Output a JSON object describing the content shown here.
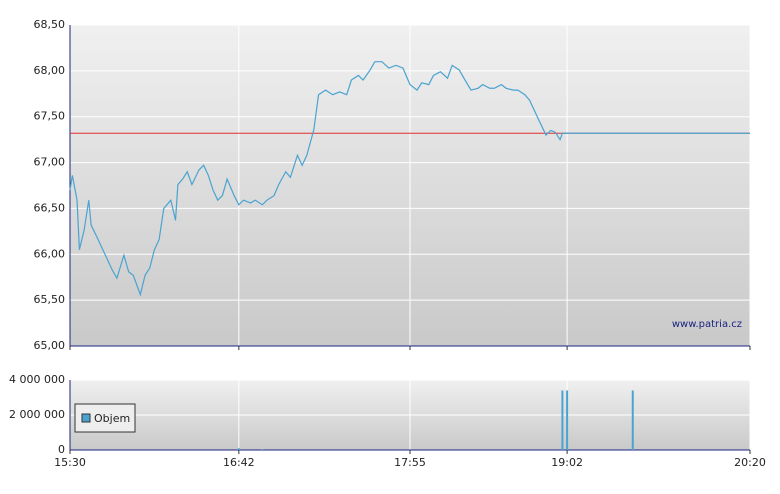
{
  "chart_data": [
    {
      "type": "line",
      "watermark": "www.patria.cz",
      "xlim": [
        "15:30",
        "20:20"
      ],
      "ylim": [
        65,
        68.5
      ],
      "yticks": [
        {
          "value": 65,
          "label": "65,00"
        },
        {
          "value": 65.5,
          "label": "65,50"
        },
        {
          "value": 66,
          "label": "66,00"
        },
        {
          "value": 66.5,
          "label": "66,50"
        },
        {
          "value": 67,
          "label": "67,00"
        },
        {
          "value": 67.5,
          "label": "67,50"
        },
        {
          "value": 68,
          "label": "68,00"
        },
        {
          "value": 68.5,
          "label": "68,50"
        }
      ],
      "grid": true,
      "reference_value": 67.32,
      "reference_color": "#e03030",
      "series": [
        {
          "color": "#4aa3d0",
          "x": [
            "15:30",
            "15:31",
            "15:33",
            "15:34",
            "15:36",
            "15:38",
            "15:39",
            "15:42",
            "15:44",
            "15:46",
            "15:48",
            "15:50",
            "15:53",
            "15:55",
            "15:57",
            "16:00",
            "16:02",
            "16:04",
            "16:06",
            "16:08",
            "16:10",
            "16:13",
            "16:15",
            "16:16",
            "16:18",
            "16:20",
            "16:22",
            "16:25",
            "16:27",
            "16:29",
            "16:31",
            "16:33",
            "16:35",
            "16:37",
            "16:40",
            "16:42",
            "16:44",
            "16:47",
            "16:49",
            "16:52",
            "16:54",
            "16:57",
            "16:59",
            "17:02",
            "17:04",
            "17:07",
            "17:09",
            "17:11",
            "17:14",
            "17:16",
            "17:19",
            "17:22",
            "17:25",
            "17:28",
            "17:30",
            "17:33",
            "17:35",
            "17:38",
            "17:40",
            "17:43",
            "17:46",
            "17:49",
            "17:52",
            "17:55",
            "17:58",
            "18:00",
            "18:03",
            "18:05",
            "18:08",
            "18:11",
            "18:13",
            "18:16",
            "18:18",
            "18:21",
            "18:24",
            "18:26",
            "18:29",
            "18:31",
            "18:34",
            "18:36",
            "18:39",
            "18:41",
            "18:44",
            "18:46",
            "18:48",
            "18:50",
            "18:53",
            "18:55",
            "18:57",
            "18:59",
            "19:00",
            "20:20"
          ],
          "values": [
            66.7,
            66.86,
            66.59,
            66.05,
            66.26,
            66.59,
            66.32,
            66.16,
            66.05,
            65.94,
            65.83,
            65.74,
            65.99,
            65.81,
            65.77,
            65.56,
            65.77,
            65.85,
            66.05,
            66.16,
            66.5,
            66.59,
            66.37,
            66.76,
            66.82,
            66.9,
            66.76,
            66.92,
            66.97,
            66.86,
            66.7,
            66.59,
            66.64,
            66.82,
            66.64,
            66.54,
            66.59,
            66.56,
            66.59,
            66.54,
            66.59,
            66.64,
            66.76,
            66.9,
            66.84,
            67.08,
            66.97,
            67.08,
            67.36,
            67.74,
            67.79,
            67.74,
            67.77,
            67.74,
            67.9,
            67.95,
            67.9,
            68.01,
            68.1,
            68.1,
            68.03,
            68.06,
            68.03,
            67.85,
            67.79,
            67.87,
            67.85,
            67.95,
            67.99,
            67.92,
            68.06,
            68.01,
            67.92,
            67.79,
            67.81,
            67.85,
            67.81,
            67.81,
            67.85,
            67.81,
            67.79,
            67.79,
            67.74,
            67.68,
            67.57,
            67.46,
            67.3,
            67.35,
            67.33,
            67.25,
            67.32,
            67.32
          ]
        }
      ]
    },
    {
      "type": "bar",
      "xlim": [
        "15:30",
        "20:20"
      ],
      "xticks": [
        "15:30",
        "16:42",
        "17:55",
        "19:02",
        "20:20"
      ],
      "ylim": [
        0,
        4000000
      ],
      "yticks": [
        0,
        {
          "value": 2000000,
          "label": "2 000 000"
        },
        {
          "value": 4000000,
          "label": "4 000 000"
        }
      ],
      "grid": true,
      "series": [
        {
          "name": "Objem",
          "color": "#4aa3d0",
          "x": [
            "16:42",
            "16:52",
            "19:00",
            "19:02",
            "19:30"
          ],
          "values": [
            100000,
            50000,
            3400000,
            3400000,
            3400000
          ]
        }
      ]
    }
  ]
}
